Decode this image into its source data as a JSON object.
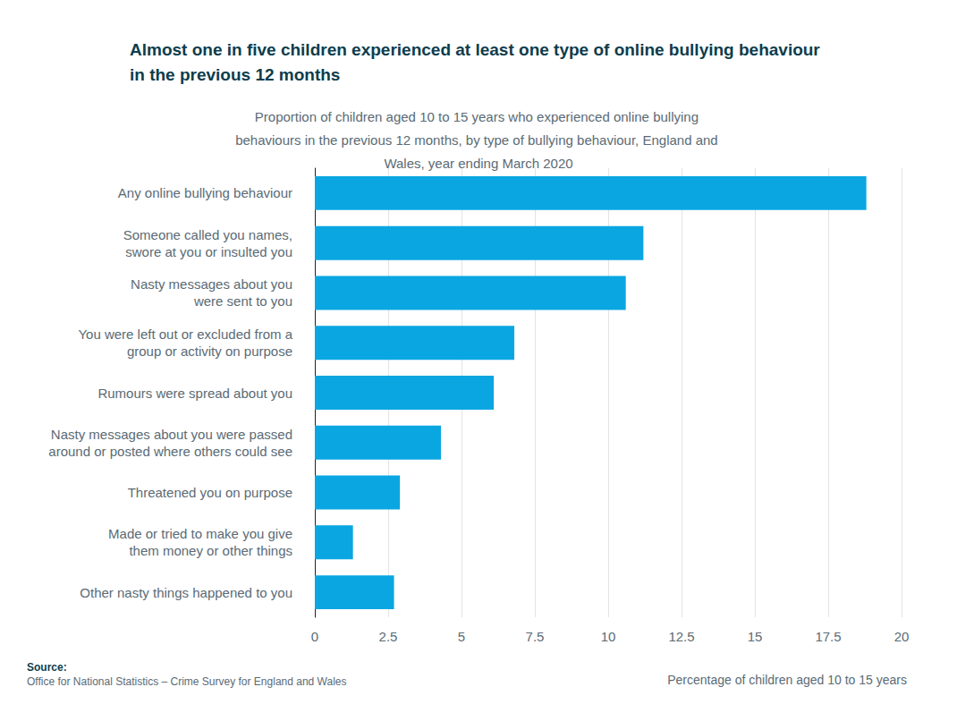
{
  "chart_data": {
    "type": "bar",
    "orientation": "horizontal",
    "title": "Almost one in five children experienced at least one type of online bullying behaviour in the previous 12 months",
    "subtitle": "Proportion of children aged 10 to 15 years who experienced online bullying behaviours in the previous 12 months, by type of bullying behaviour, England and Wales, year ending March 2020",
    "x_label": "Percentage of children aged 10 to 15 years",
    "source_label": "Source:",
    "source": "Office for National Statistics – Crime Survey for England and Wales",
    "categories": [
      "Any online bullying behaviour",
      "Someone called you names,\nswore at you or insulted you",
      "Nasty messages about you\nwere sent to you",
      "You were left out or excluded from a\ngroup or activity on purpose",
      "Rumours were spread about you",
      "Nasty messages about you were passed\naround or posted where others could see",
      "Threatened you on purpose",
      "Made or tried to make you give\nthem money or other things",
      "Other nasty things happened to you"
    ],
    "values": [
      18.8,
      11.2,
      10.6,
      6.8,
      6.1,
      4.3,
      2.9,
      1.3,
      2.7
    ],
    "color": "#0aa6e1",
    "xlim": [
      0,
      20
    ],
    "xticks": [
      0,
      2.5,
      5,
      7.5,
      10,
      12.5,
      15,
      17.5,
      20
    ],
    "grid": true
  }
}
